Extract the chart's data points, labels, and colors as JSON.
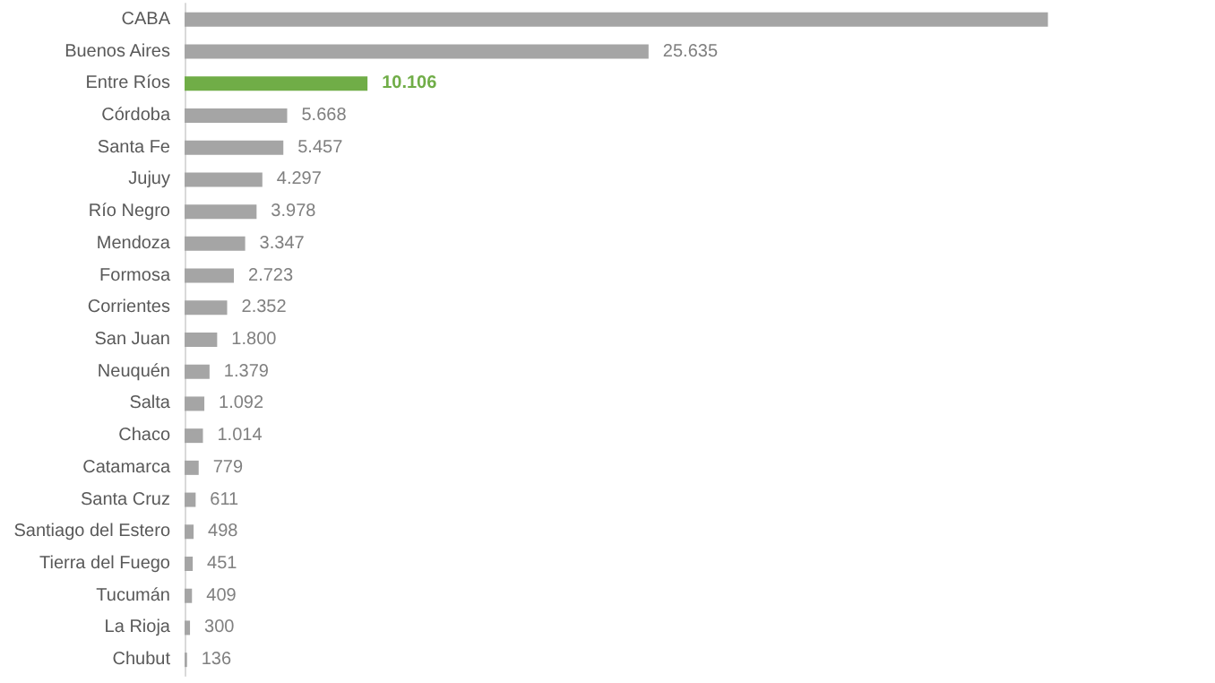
{
  "chart_data": {
    "type": "bar",
    "orientation": "horizontal",
    "categories": [
      "CABA",
      "Buenos Aires",
      "Entre Ríos",
      "Córdoba",
      "Santa Fe",
      "Jujuy",
      "Río Negro",
      "Mendoza",
      "Formosa",
      "Corrientes",
      "San Juan",
      "Neuquén",
      "Salta",
      "Chaco",
      "Catamarca",
      "Santa Cruz",
      "Santiago del Estero",
      "Tierra del Fuego",
      "Tucumán",
      "La Rioja",
      "Chubut"
    ],
    "values": [
      47700,
      25635,
      10106,
      5668,
      5457,
      4297,
      3978,
      3347,
      2723,
      2352,
      1800,
      1379,
      1092,
      1014,
      779,
      611,
      498,
      451,
      409,
      300,
      136
    ],
    "value_labels": [
      null,
      "25.635",
      "10.106",
      "5.668",
      "5.457",
      "4.297",
      "3.978",
      "3.347",
      "2.723",
      "2.352",
      "1.800",
      "1.379",
      "1.092",
      "1.014",
      "779",
      "611",
      "498",
      "451",
      "409",
      "300",
      "136"
    ],
    "colors": [
      "#a5a5a5",
      "#a5a5a5",
      "#70ad47",
      "#a5a5a5",
      "#a5a5a5",
      "#a5a5a5",
      "#a5a5a5",
      "#a5a5a5",
      "#a5a5a5",
      "#a5a5a5",
      "#a5a5a5",
      "#a5a5a5",
      "#a5a5a5",
      "#a5a5a5",
      "#a5a5a5",
      "#a5a5a5",
      "#a5a5a5",
      "#a5a5a5",
      "#a5a5a5",
      "#a5a5a5",
      "#a5a5a5"
    ],
    "grid": false
  }
}
